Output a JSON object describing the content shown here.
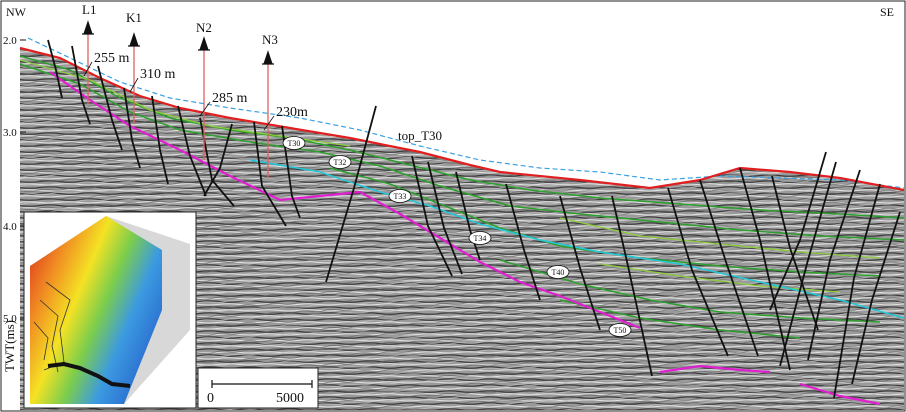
{
  "section": {
    "left_direction": "NW",
    "right_direction": "SE",
    "axis_label": "TWT(ms)",
    "twt_ticks": [
      "2.0",
      "3.0",
      "4.0",
      "5.0"
    ]
  },
  "wells": [
    {
      "name": "L1",
      "depth_label": "255 m"
    },
    {
      "name": "K1",
      "depth_label": "310 m"
    },
    {
      "name": "N2",
      "depth_label": "285 m"
    },
    {
      "name": "N3",
      "depth_label": "230m"
    }
  ],
  "horizons": {
    "top_label": "top_T30",
    "labels": [
      "T30",
      "T32",
      "T33",
      "T34",
      "T40",
      "T50"
    ]
  },
  "scale_bar": {
    "start": "0",
    "end": "5000"
  },
  "colors": {
    "seafloor": "#e02020",
    "top_t30": "#3aa0e0",
    "green_horizon": "#2ca02c",
    "lightgreen_horizon": "#8ccc3c",
    "cyan_horizon": "#22c8d8",
    "magenta_horizon": "#e020d0",
    "fault": "#111111",
    "well_line": "#e06060"
  }
}
